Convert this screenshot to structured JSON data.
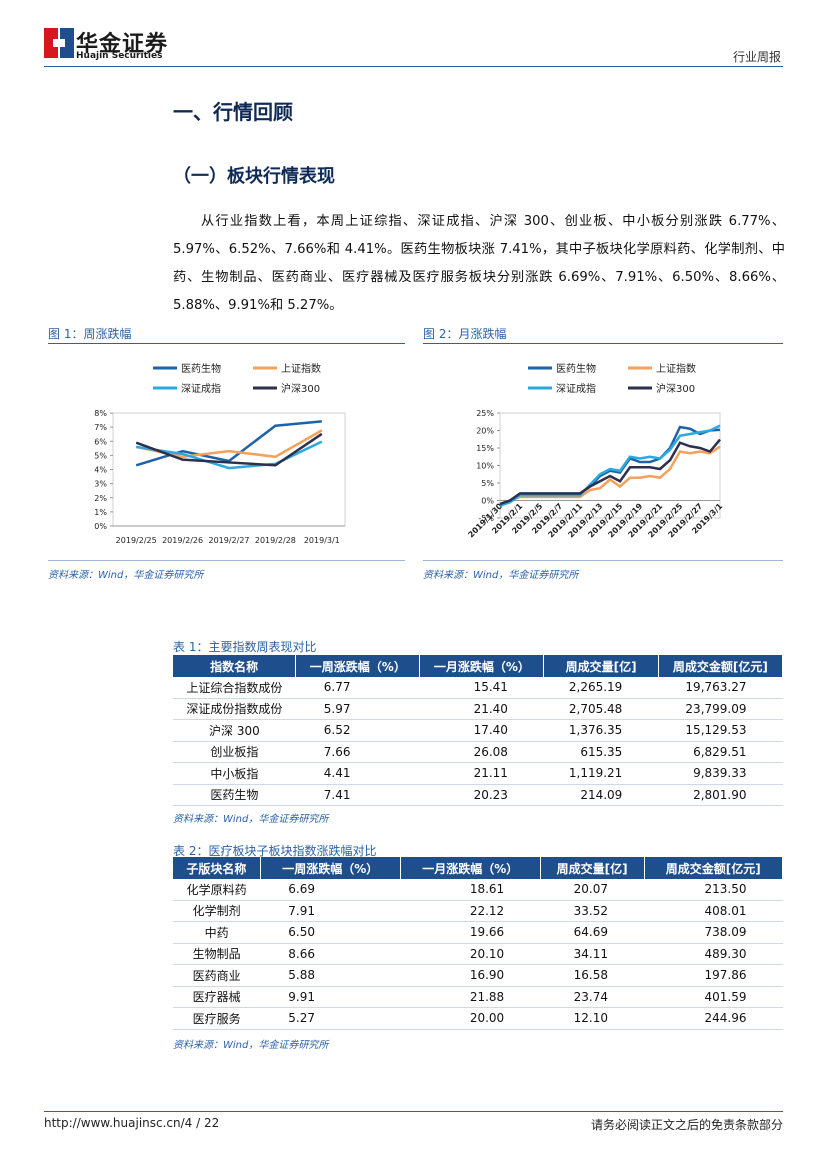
{
  "header": {
    "brand": "华金证券",
    "brand_en": "Huajin Securities",
    "report_type": "行业周报"
  },
  "heading": "一、行情回顾",
  "subheading": "（一）板块行情表现",
  "paragraph": "从行业指数上看，本周上证综指、深证成指、沪深 300、创业板、中小板分别涨跌 6.77%、5.97%、6.52%、7.66%和 4.41%。医药生物板块涨 7.41%，其中子板块化学原料药、化学制剂、中药、生物制品、医药商业、医疗器械及医疗服务板块分别涨跌 6.69%、7.91%、6.50%、8.66%、5.88%、9.91%和 5.27%。",
  "figures": [
    {
      "caption": "图 1：周涨跌幅",
      "source": "资料来源：Wind，华金证券研究所"
    },
    {
      "caption": "图 2：月涨跌幅",
      "source": "资料来源：Wind，华金证券研究所"
    }
  ],
  "chart_data": [
    {
      "type": "line",
      "categories": [
        "2019/2/25",
        "2019/2/26",
        "2019/2/27",
        "2019/2/28",
        "2019/3/1"
      ],
      "series": [
        {
          "name": "医药生物",
          "color": "#1f62a8",
          "values": [
            4.3,
            5.3,
            4.6,
            7.1,
            7.41
          ]
        },
        {
          "name": "上证指数",
          "color": "#f3a15c",
          "values": [
            5.6,
            4.9,
            5.3,
            4.9,
            6.77
          ]
        },
        {
          "name": "深证成指",
          "color": "#2aa9e0",
          "values": [
            5.6,
            5.1,
            4.1,
            4.4,
            5.97
          ]
        },
        {
          "name": "沪深300",
          "color": "#2d2f4e",
          "values": [
            5.9,
            4.7,
            4.5,
            4.3,
            6.52
          ]
        }
      ],
      "ylim": [
        0,
        8
      ],
      "yticks": [
        {
          "value": 0,
          "label": "0%"
        },
        {
          "value": 1,
          "label": "1%"
        },
        {
          "value": 2,
          "label": "2%"
        },
        {
          "value": 3,
          "label": "3%"
        },
        {
          "value": 4,
          "label": "4%"
        },
        {
          "value": 5,
          "label": "5%"
        },
        {
          "value": 6,
          "label": "6%"
        },
        {
          "value": 7,
          "label": "7%"
        },
        {
          "value": 8,
          "label": "8%"
        }
      ],
      "x_label_rotate": false
    },
    {
      "type": "line",
      "categories": [
        "2019/1/30",
        null,
        "2019/2/1",
        null,
        "2019/2/5",
        null,
        "2019/2/7",
        null,
        "2019/2/11",
        null,
        "2019/2/13",
        null,
        "2019/2/15",
        null,
        "2019/2/19",
        null,
        "2019/2/21",
        null,
        "2019/2/25",
        null,
        "2019/2/27",
        null,
        "2019/3/1"
      ],
      "series": [
        {
          "name": "医药生物",
          "color": "#1f62a8",
          "values": [
            -1,
            0,
            2,
            2,
            2,
            2,
            2,
            2,
            2,
            4,
            7,
            8.5,
            8,
            12,
            11,
            11,
            12,
            15,
            21,
            20.5,
            19,
            20,
            20.23
          ]
        },
        {
          "name": "上证指数",
          "color": "#f3a15c",
          "values": [
            -1,
            0,
            1,
            1,
            1,
            1,
            1,
            1,
            1,
            3,
            3.5,
            6,
            4,
            6.5,
            6.5,
            7,
            6.5,
            9,
            14,
            13.5,
            14,
            13.5,
            15.41
          ]
        },
        {
          "name": "深证成指",
          "color": "#2aa9e0",
          "values": [
            -1.5,
            -0.5,
            1.5,
            1.5,
            1.5,
            1.5,
            1.5,
            1.5,
            1.5,
            4.5,
            7.5,
            9,
            8.5,
            12.5,
            12,
            12.5,
            12,
            14.5,
            18.5,
            19,
            19.5,
            20,
            21.4
          ]
        },
        {
          "name": "沪深300",
          "color": "#2d2f4e",
          "values": [
            -1,
            0,
            2,
            2,
            2,
            2,
            2,
            2,
            2,
            4,
            5.5,
            7,
            5.5,
            9.5,
            9.5,
            9.5,
            9,
            11.5,
            16.5,
            15.5,
            15,
            14,
            17.4
          ]
        }
      ],
      "ylim": [
        -5,
        25
      ],
      "yticks": [
        {
          "value": -5,
          "label": "-5%"
        },
        {
          "value": 0,
          "label": "0%"
        },
        {
          "value": 5,
          "label": "5%"
        },
        {
          "value": 10,
          "label": "10%"
        },
        {
          "value": 15,
          "label": "15%"
        },
        {
          "value": 20,
          "label": "20%"
        },
        {
          "value": 25,
          "label": "25%"
        }
      ],
      "x_label_rotate": true
    }
  ],
  "tables": [
    {
      "caption": "表 1：主要指数周表现对比",
      "columns": [
        "指数名称",
        "一周涨跌幅（%）",
        "一月涨跌幅（%）",
        "周成交量[亿]",
        "周成交金额[亿元]"
      ],
      "rows": [
        [
          "上证综合指数成份",
          "6.77",
          "15.41",
          "2,265.19",
          "19,763.27"
        ],
        [
          "深证成份指数成份",
          "5.97",
          "21.40",
          "2,705.48",
          "23,799.09"
        ],
        [
          "沪深 300",
          "6.52",
          "17.40",
          "1,376.35",
          "15,129.53"
        ],
        [
          "创业板指",
          "7.66",
          "26.08",
          "615.35",
          "6,829.51"
        ],
        [
          "中小板指",
          "4.41",
          "21.11",
          "1,119.21",
          "9,839.33"
        ],
        [
          "医药生物",
          "7.41",
          "20.23",
          "214.09",
          "2,801.90"
        ]
      ],
      "source": "资料来源：Wind，华金证券研究所"
    },
    {
      "caption": "表 2：医疗板块子板块指数涨跌幅对比",
      "columns": [
        "子版块名称",
        "一周涨跌幅（%）",
        "一月涨跌幅（%）",
        "周成交量[亿]",
        "周成交金额[亿元]"
      ],
      "rows": [
        [
          "化学原料药",
          "6.69",
          "18.61",
          "20.07",
          "213.50"
        ],
        [
          "化学制剂",
          "7.91",
          "22.12",
          "33.52",
          "408.01"
        ],
        [
          "中药",
          "6.50",
          "19.66",
          "64.69",
          "738.09"
        ],
        [
          "生物制品",
          "8.66",
          "20.10",
          "34.11",
          "489.30"
        ],
        [
          "医药商业",
          "5.88",
          "16.90",
          "16.58",
          "197.86"
        ],
        [
          "医疗器械",
          "9.91",
          "21.88",
          "23.74",
          "401.59"
        ],
        [
          "医疗服务",
          "5.27",
          "20.00",
          "12.10",
          "244.96"
        ]
      ],
      "source": "资料来源：Wind，华金证券研究所"
    }
  ],
  "footer": {
    "url": "http://www.huajinsc.cn/4 / 22",
    "disclaimer": "请务必阅读正文之后的免责条款部分"
  }
}
